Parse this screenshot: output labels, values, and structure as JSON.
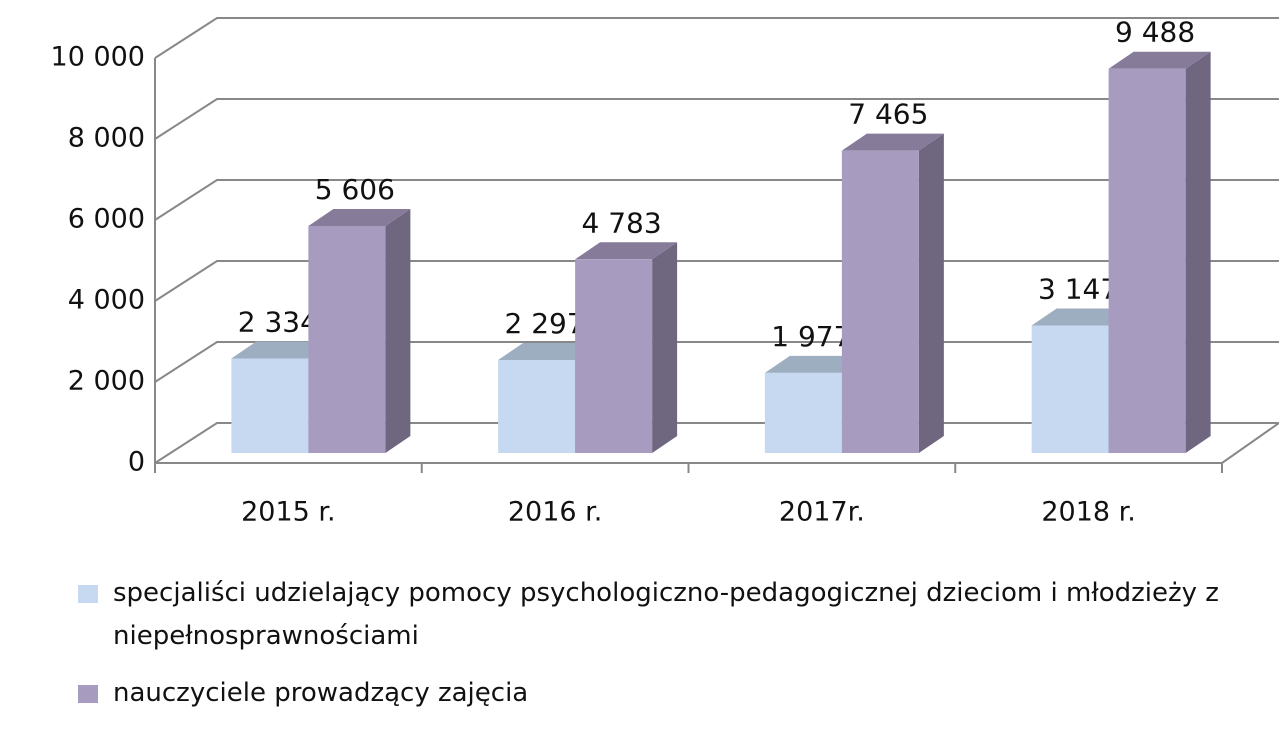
{
  "chart_data": {
    "type": "bar3d",
    "categories": [
      "2015 r.",
      "2016 r.",
      "2017r.",
      "2018 r."
    ],
    "series": [
      {
        "name": "specjaliści udzielający pomocy psychologiczno-pedagogicznej  dzieciom i młodzieży z niepełnosprawnościami",
        "color": "#c6d9f1",
        "values": [
          2334,
          2297,
          1977,
          3147
        ],
        "value_labels": [
          "2 334",
          "2 297",
          "1 977",
          "3 147"
        ]
      },
      {
        "name": "nauczyciele prowadzący zajęcia",
        "color": "#a89bc0",
        "values": [
          5606,
          4783,
          7465,
          9488
        ],
        "value_labels": [
          "5 606",
          "4 783",
          "7 465",
          "9 488"
        ]
      }
    ],
    "ylim": [
      0,
      10000
    ],
    "yticks": [
      0,
      {
        "value": 2000,
        "label": "2 000"
      },
      {
        "value": 4000,
        "label": "4 000"
      },
      {
        "value": 6000,
        "label": "6 000"
      },
      {
        "value": 8000,
        "label": "8 000"
      },
      {
        "value": 10000,
        "label": "10 000"
      }
    ],
    "grid": true
  }
}
